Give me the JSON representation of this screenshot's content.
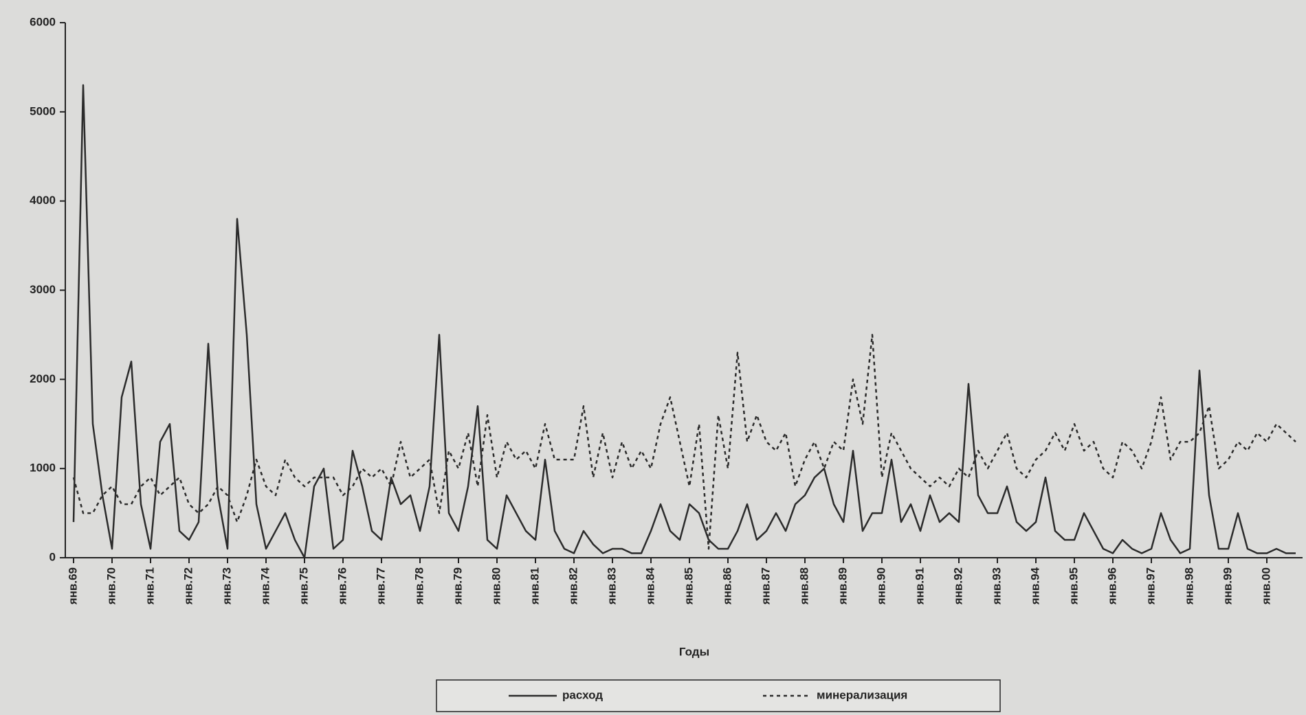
{
  "chart_data": {
    "type": "line",
    "x_label": "Годы",
    "categories": [
      "янв.69",
      null,
      null,
      null,
      "янв.70",
      null,
      null,
      null,
      "янв.71",
      null,
      null,
      null,
      "янв.72",
      null,
      null,
      null,
      "янв.73",
      null,
      null,
      null,
      "янв.74",
      null,
      null,
      null,
      "янв.75",
      null,
      null,
      null,
      "янв.76",
      null,
      null,
      null,
      "янв.77",
      null,
      null,
      null,
      "янв.78",
      null,
      null,
      null,
      "янв.79",
      null,
      null,
      null,
      "янв.80",
      null,
      null,
      null,
      "янв.81",
      null,
      null,
      null,
      "янв.82",
      null,
      null,
      null,
      "янв.83",
      null,
      null,
      null,
      "янв.84",
      null,
      null,
      null,
      "янв.85",
      null,
      null,
      null,
      "янв.86",
      null,
      null,
      null,
      "янв.87",
      null,
      null,
      null,
      "янв.88",
      null,
      null,
      null,
      "янв.89",
      null,
      null,
      null,
      "янв.90",
      null,
      null,
      null,
      "янв.91",
      null,
      null,
      null,
      "янв.92",
      null,
      null,
      null,
      "янв.93",
      null,
      null,
      null,
      "янв.94",
      null,
      null,
      null,
      "янв.95",
      null,
      null,
      null,
      "янв.96",
      null,
      null,
      null,
      "янв.97",
      null,
      null,
      null,
      "янв.98",
      null,
      null,
      null,
      "янв.99",
      null,
      null,
      null,
      "янв.00",
      null,
      null,
      null
    ],
    "series": [
      {
        "name": "расход",
        "color": "#2b2b2b",
        "dash": "none",
        "values": [
          400,
          5300,
          1500,
          700,
          100,
          1800,
          2200,
          600,
          100,
          1300,
          1500,
          300,
          200,
          400,
          2400,
          700,
          100,
          3800,
          2500,
          600,
          100,
          300,
          500,
          200,
          0,
          800,
          1000,
          100,
          200,
          1200,
          800,
          300,
          200,
          900,
          600,
          700,
          300,
          800,
          2500,
          500,
          300,
          800,
          1700,
          200,
          100,
          700,
          500,
          300,
          200,
          1100,
          300,
          100,
          50,
          300,
          150,
          50,
          100,
          100,
          50,
          50,
          300,
          600,
          300,
          200,
          600,
          500,
          200,
          100,
          100,
          300,
          600,
          200,
          300,
          500,
          300,
          600,
          700,
          900,
          1000,
          600,
          400,
          1200,
          300,
          500,
          500,
          1100,
          400,
          600,
          300,
          700,
          400,
          500,
          400,
          1950,
          700,
          500,
          500,
          800,
          400,
          300,
          400,
          900,
          300,
          200,
          200,
          500,
          300,
          100,
          50,
          200,
          100,
          50,
          100,
          500,
          200,
          50,
          100,
          2100,
          700,
          100,
          100,
          500,
          100,
          50,
          50,
          100,
          50,
          50
        ]
      },
      {
        "name": "минерализация",
        "color": "#2b2b2b",
        "dash": "5 5",
        "values": [
          900,
          500,
          500,
          700,
          800,
          600,
          600,
          800,
          900,
          700,
          800,
          900,
          600,
          500,
          600,
          800,
          700,
          400,
          700,
          1100,
          800,
          700,
          1100,
          900,
          800,
          900,
          900,
          900,
          700,
          800,
          1000,
          900,
          1000,
          800,
          1300,
          900,
          1000,
          1100,
          500,
          1200,
          1000,
          1400,
          800,
          1600,
          900,
          1300,
          1100,
          1200,
          1000,
          1500,
          1100,
          1100,
          1100,
          1700,
          900,
          1400,
          900,
          1300,
          1000,
          1200,
          1000,
          1500,
          1800,
          1300,
          800,
          1500,
          100,
          1600,
          1000,
          2300,
          1300,
          1600,
          1300,
          1200,
          1400,
          800,
          1100,
          1300,
          1000,
          1300,
          1200,
          2000,
          1500,
          2500,
          900,
          1400,
          1200,
          1000,
          900,
          800,
          900,
          800,
          1000,
          900,
          1200,
          1000,
          1200,
          1400,
          1000,
          900,
          1100,
          1200,
          1400,
          1200,
          1500,
          1200,
          1300,
          1000,
          900,
          1300,
          1200,
          1000,
          1300,
          1800,
          1100,
          1300,
          1300,
          1400,
          1700,
          1000,
          1100,
          1300,
          1200,
          1400,
          1300,
          1500,
          1400,
          1300
        ]
      }
    ],
    "ylim": [
      0,
      6000
    ],
    "yticks": [
      0,
      1000,
      2000,
      3000,
      4000,
      5000,
      6000
    ]
  }
}
